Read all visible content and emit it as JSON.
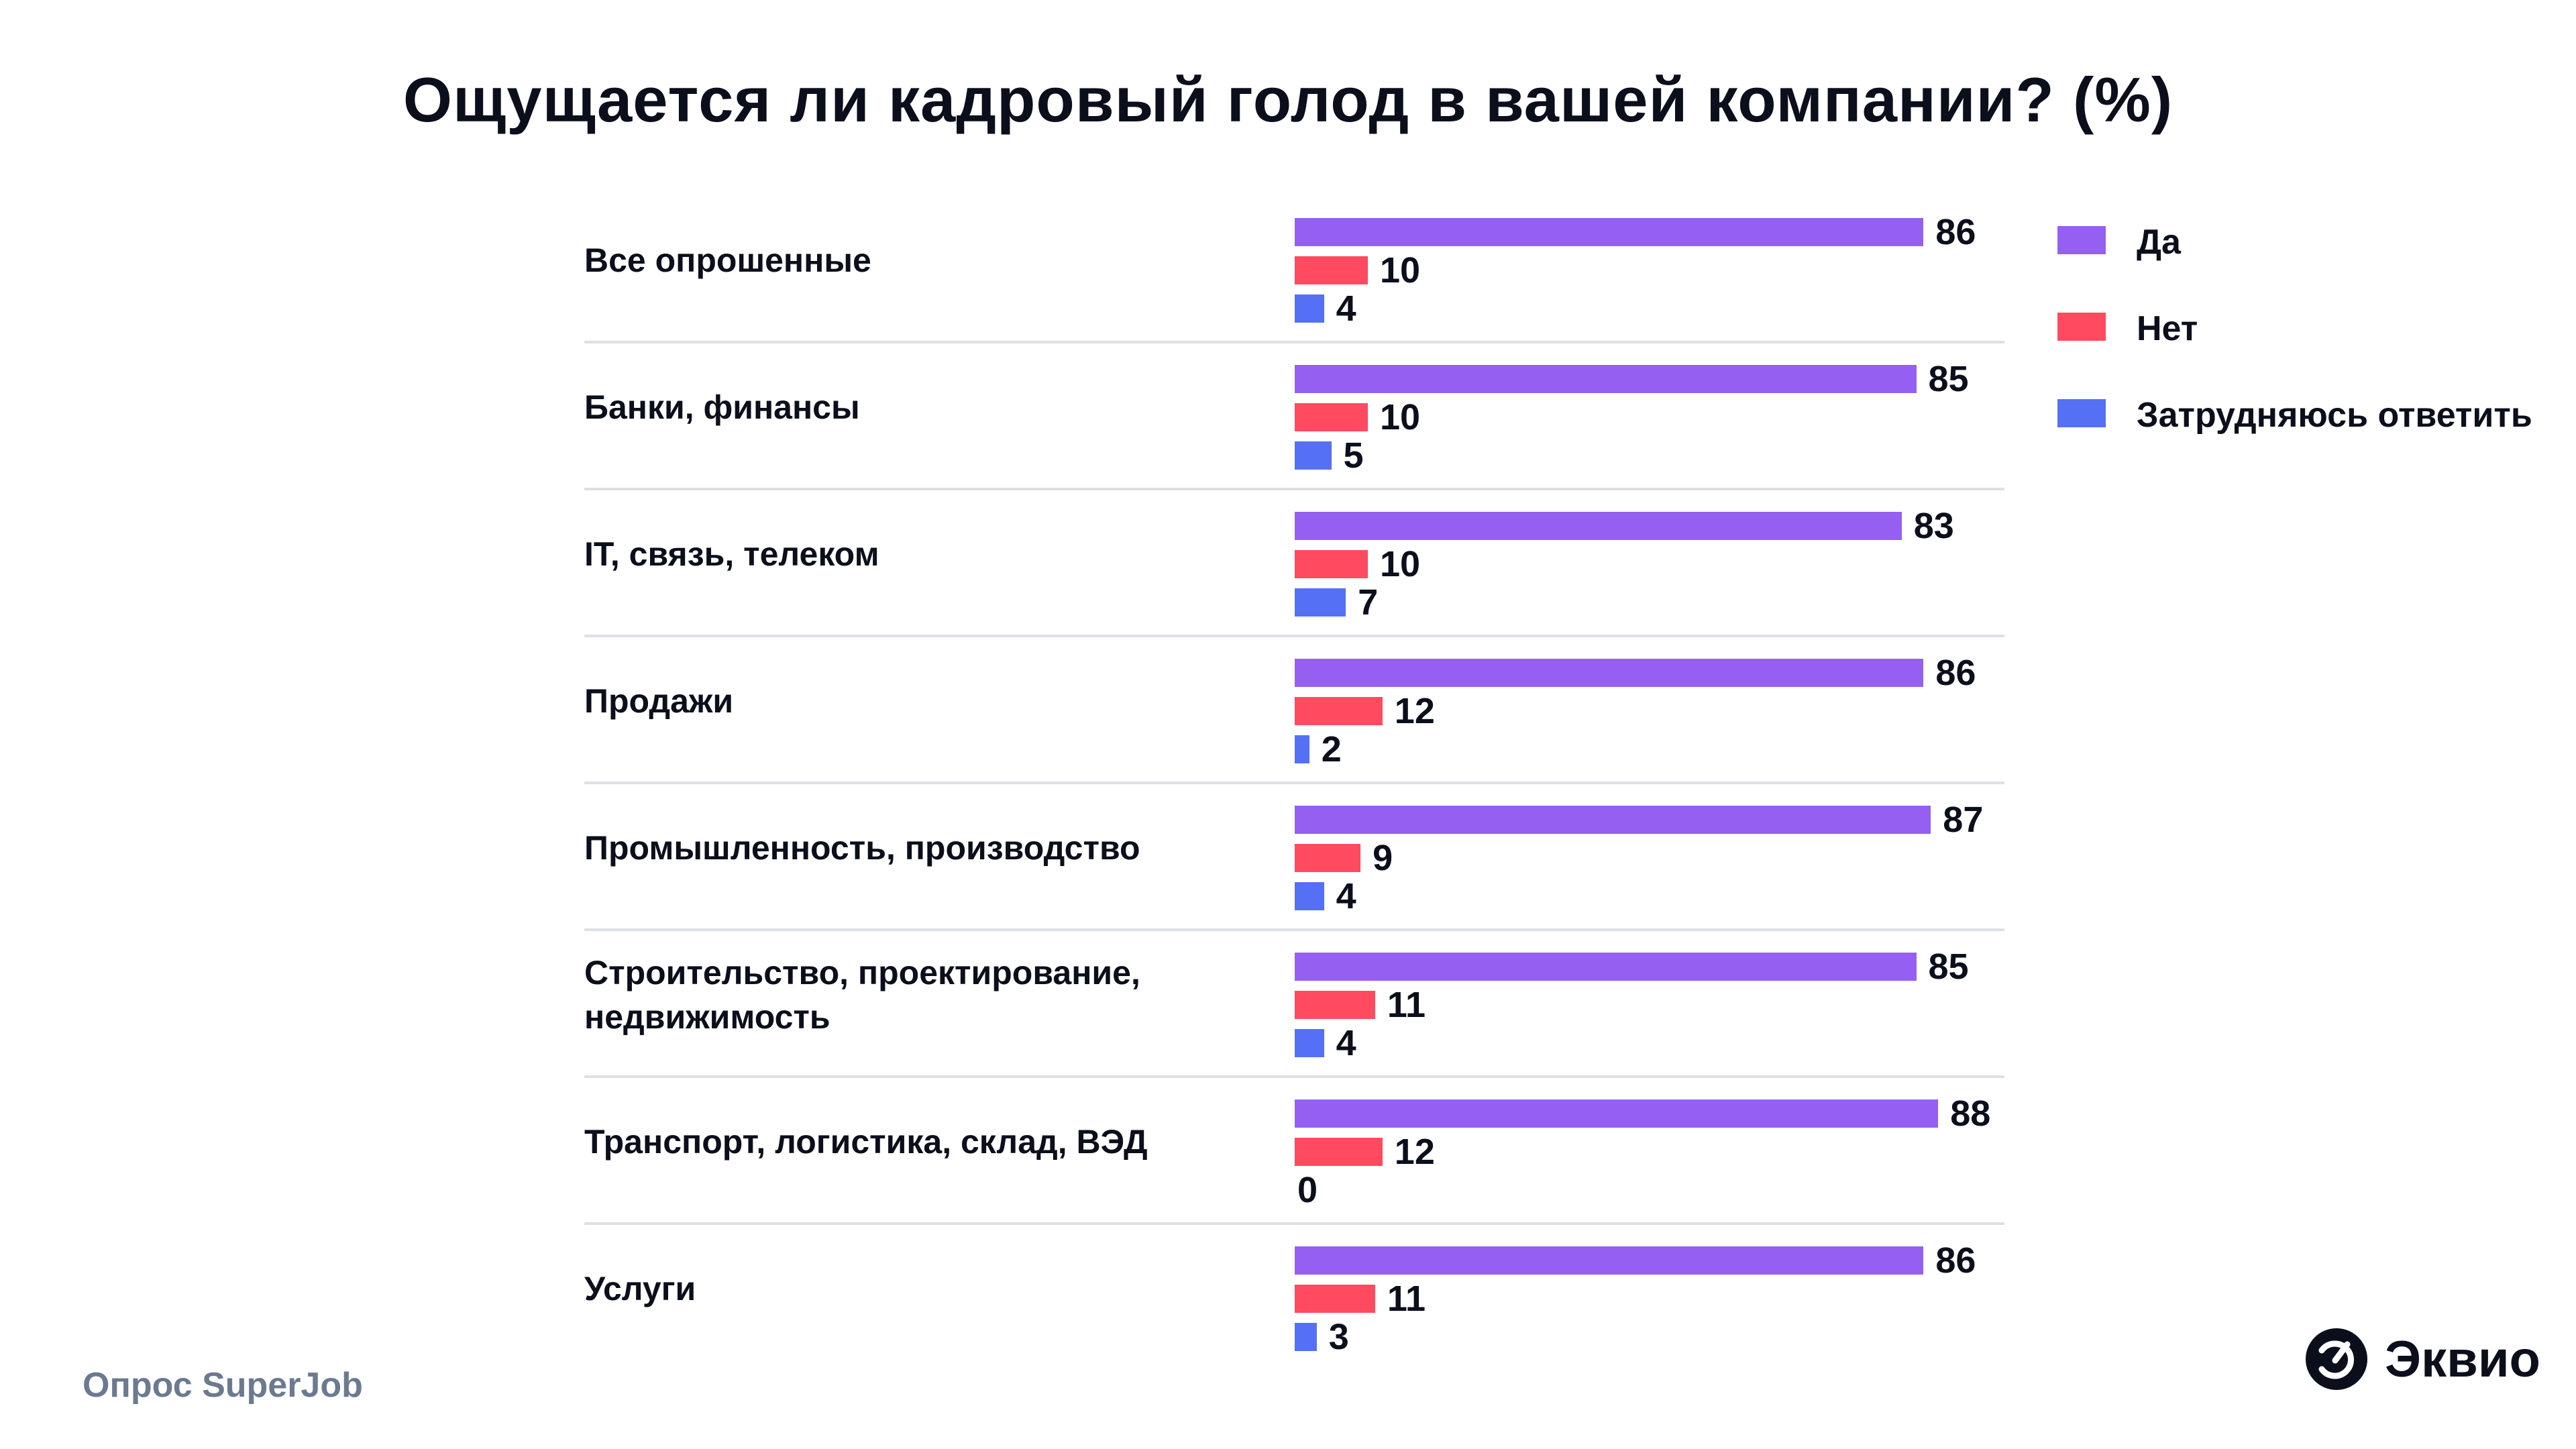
{
  "chart_data": {
    "type": "bar",
    "orientation": "horizontal",
    "title": "Ощущается ли кадровый голод в вашей компании? (%)",
    "categories": [
      "Все опрошенные",
      "Банки, финансы",
      "IT, связь, телеком",
      "Продажи",
      "Промышленность, производство",
      "Строительство, проектирование, недвижимость",
      "Транспорт, логистика, склад, ВЭД",
      "Услуги"
    ],
    "series": [
      {
        "name": "Да",
        "color": "#955ff2",
        "values": [
          86,
          85,
          83,
          86,
          87,
          85,
          88,
          86
        ]
      },
      {
        "name": "Нет",
        "color": "#ff4a5f",
        "values": [
          10,
          10,
          10,
          12,
          9,
          11,
          12,
          11
        ]
      },
      {
        "name": "Затрудняюсь ответить",
        "color": "#5570f5",
        "values": [
          4,
          5,
          7,
          2,
          4,
          4,
          0,
          3
        ]
      }
    ],
    "xlim": [
      0,
      100
    ],
    "grid": false,
    "legend_position": "right",
    "data_labels": true
  },
  "footer": {
    "source": "Опрос SuperJob",
    "logo_text": "Эквио"
  }
}
